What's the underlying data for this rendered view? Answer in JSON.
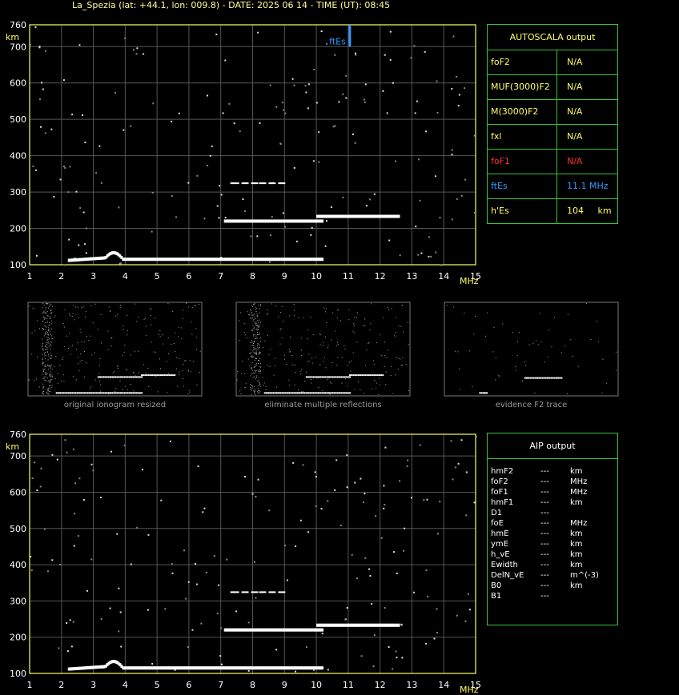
{
  "header": "La_Spezia (lat: +44.1, lon: 009.8) - DATE: 2025 06 14 - TIME (UT): 08:45",
  "autoscala": {
    "title": "AUTOSCALA output",
    "rows": [
      {
        "key": "foF2",
        "value": "N/A",
        "color": "yellow"
      },
      {
        "key": "MUF(3000)F2",
        "value": "N/A",
        "color": "yellow"
      },
      {
        "key": "M(3000)F2",
        "value": "N/A",
        "color": "yellow"
      },
      {
        "key": "fxl",
        "value": "N/A",
        "color": "yellow"
      },
      {
        "key": "foF1",
        "value": "N/A",
        "color": "red"
      },
      {
        "key": "ftEs",
        "value": "11.1 MHz",
        "color": "blue"
      },
      {
        "key": "h'Es",
        "value": "104     km",
        "color": "yellow"
      }
    ]
  },
  "thumbnails": [
    {
      "caption": "original ionogram resized"
    },
    {
      "caption": "eliminate multiple reflections"
    },
    {
      "caption": "evidence F2 trace"
    }
  ],
  "aip": {
    "title": "AIP output",
    "rows": [
      {
        "key": "hmF2",
        "val": "---",
        "unit": "km"
      },
      {
        "key": "foF2",
        "val": "---",
        "unit": "MHz"
      },
      {
        "key": "foF1",
        "val": "---",
        "unit": "MHz"
      },
      {
        "key": "hmF1",
        "val": "---",
        "unit": "km"
      },
      {
        "key": "D1",
        "val": "---",
        "unit": ""
      },
      {
        "key": "foE",
        "val": "---",
        "unit": "MHz"
      },
      {
        "key": "hmE",
        "val": "---",
        "unit": "km"
      },
      {
        "key": "ymE",
        "val": "---",
        "unit": "km"
      },
      {
        "key": "h_vE",
        "val": "---",
        "unit": "km"
      },
      {
        "key": "Ewidth",
        "val": "---",
        "unit": "km"
      },
      {
        "key": "DelN_vE",
        "val": "---",
        "unit": "m^(-3)"
      },
      {
        "key": "B0",
        "val": "---",
        "unit": "km"
      },
      {
        "key": "B1",
        "val": "---",
        "unit": ""
      }
    ]
  },
  "chart_data": [
    {
      "type": "scatter",
      "xlabel": "MHz",
      "ylabel": "km",
      "xlim": [
        1,
        15
      ],
      "ylim": [
        100,
        760
      ],
      "x_ticks": [
        1,
        2,
        3,
        4,
        5,
        6,
        7,
        8,
        9,
        10,
        11,
        12,
        13,
        14,
        15
      ],
      "y_ticks": [
        100,
        200,
        300,
        400,
        500,
        600,
        700,
        760
      ],
      "annotation": {
        "label": "ftEs",
        "x": 11.05,
        "y_from": 700,
        "y_to": 760
      },
      "traces": [
        {
          "x_from": 2.2,
          "x_to": 10.2,
          "y": 115
        },
        {
          "x_from": 7.1,
          "x_to": 10.2,
          "y": 220
        },
        {
          "x_from": 10.0,
          "x_to": 12.6,
          "y": 233
        },
        {
          "x_from": 7.2,
          "x_to": 9.0,
          "y": 322
        }
      ]
    },
    {
      "type": "scatter",
      "xlabel": "MHz",
      "ylabel": "km",
      "xlim": [
        1,
        15
      ],
      "ylim": [
        100,
        760
      ],
      "x_ticks": [
        1,
        2,
        3,
        4,
        5,
        6,
        7,
        8,
        9,
        10,
        11,
        12,
        13,
        14,
        15
      ],
      "y_ticks": [
        100,
        200,
        300,
        400,
        500,
        600,
        700,
        760
      ],
      "traces": [
        {
          "x_from": 2.2,
          "x_to": 10.2,
          "y": 115
        },
        {
          "x_from": 7.1,
          "x_to": 10.2,
          "y": 220
        },
        {
          "x_from": 10.0,
          "x_to": 12.6,
          "y": 233
        },
        {
          "x_from": 7.2,
          "x_to": 9.0,
          "y": 322
        }
      ]
    }
  ]
}
